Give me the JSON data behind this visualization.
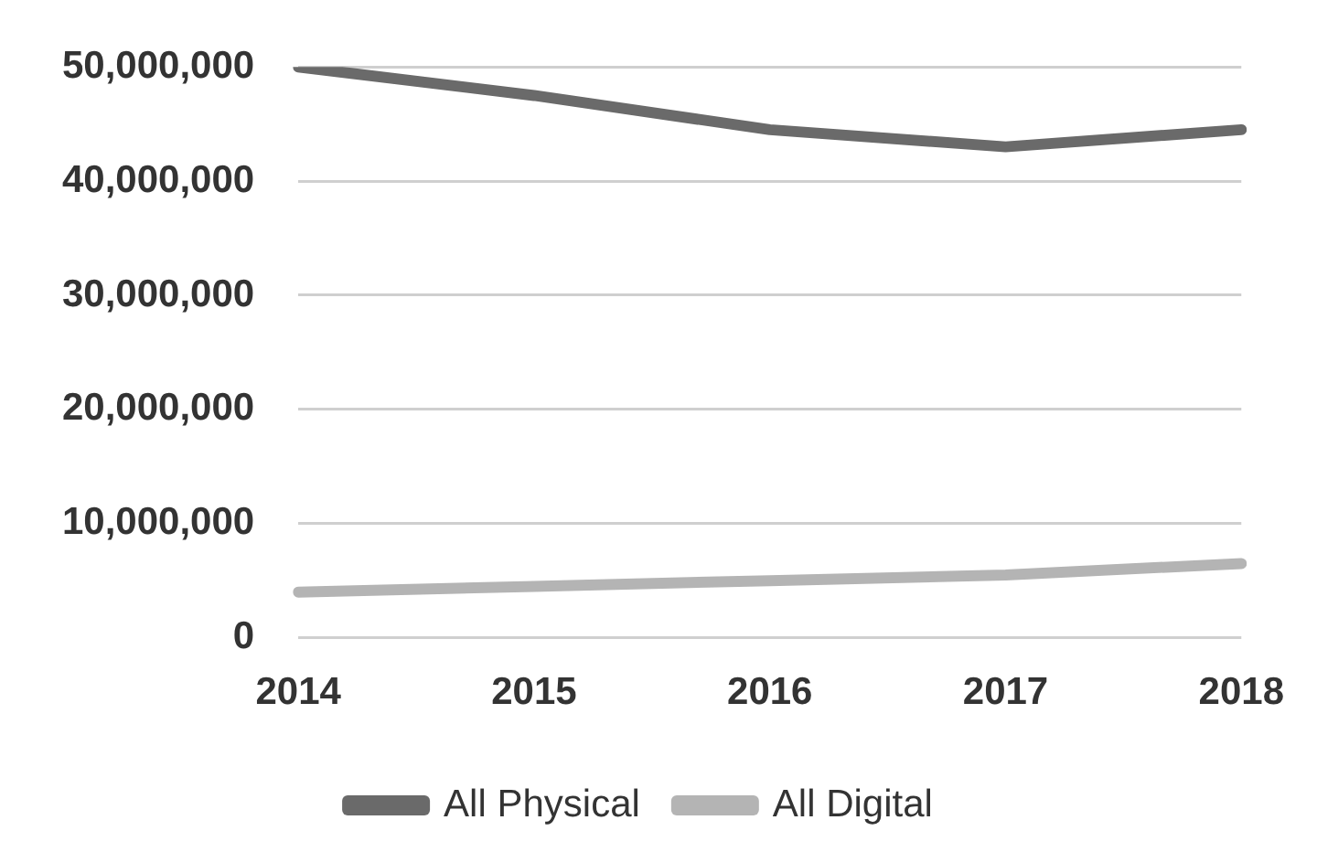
{
  "chart_data": {
    "type": "line",
    "categories": [
      "2014",
      "2015",
      "2016",
      "2017",
      "2018"
    ],
    "series": [
      {
        "name": "All Physical",
        "color": "#6a6a6a",
        "values": [
          50000000,
          47500000,
          44500000,
          43000000,
          44500000
        ]
      },
      {
        "name": "All Digital",
        "color": "#b4b4b4",
        "values": [
          4000000,
          4500000,
          5000000,
          5500000,
          6500000
        ]
      }
    ],
    "ylim": [
      0,
      50000000
    ],
    "yticks": [
      {
        "value": 0,
        "label": "0"
      },
      {
        "value": 10000000,
        "label": "10,000,000"
      },
      {
        "value": 20000000,
        "label": "20,000,000"
      },
      {
        "value": 30000000,
        "label": "30,000,000"
      },
      {
        "value": 40000000,
        "label": "40,000,000"
      },
      {
        "value": 50000000,
        "label": "50,000,000"
      }
    ],
    "grid": "y",
    "legend": "bottom",
    "marker": "none",
    "line_style": "solid"
  }
}
